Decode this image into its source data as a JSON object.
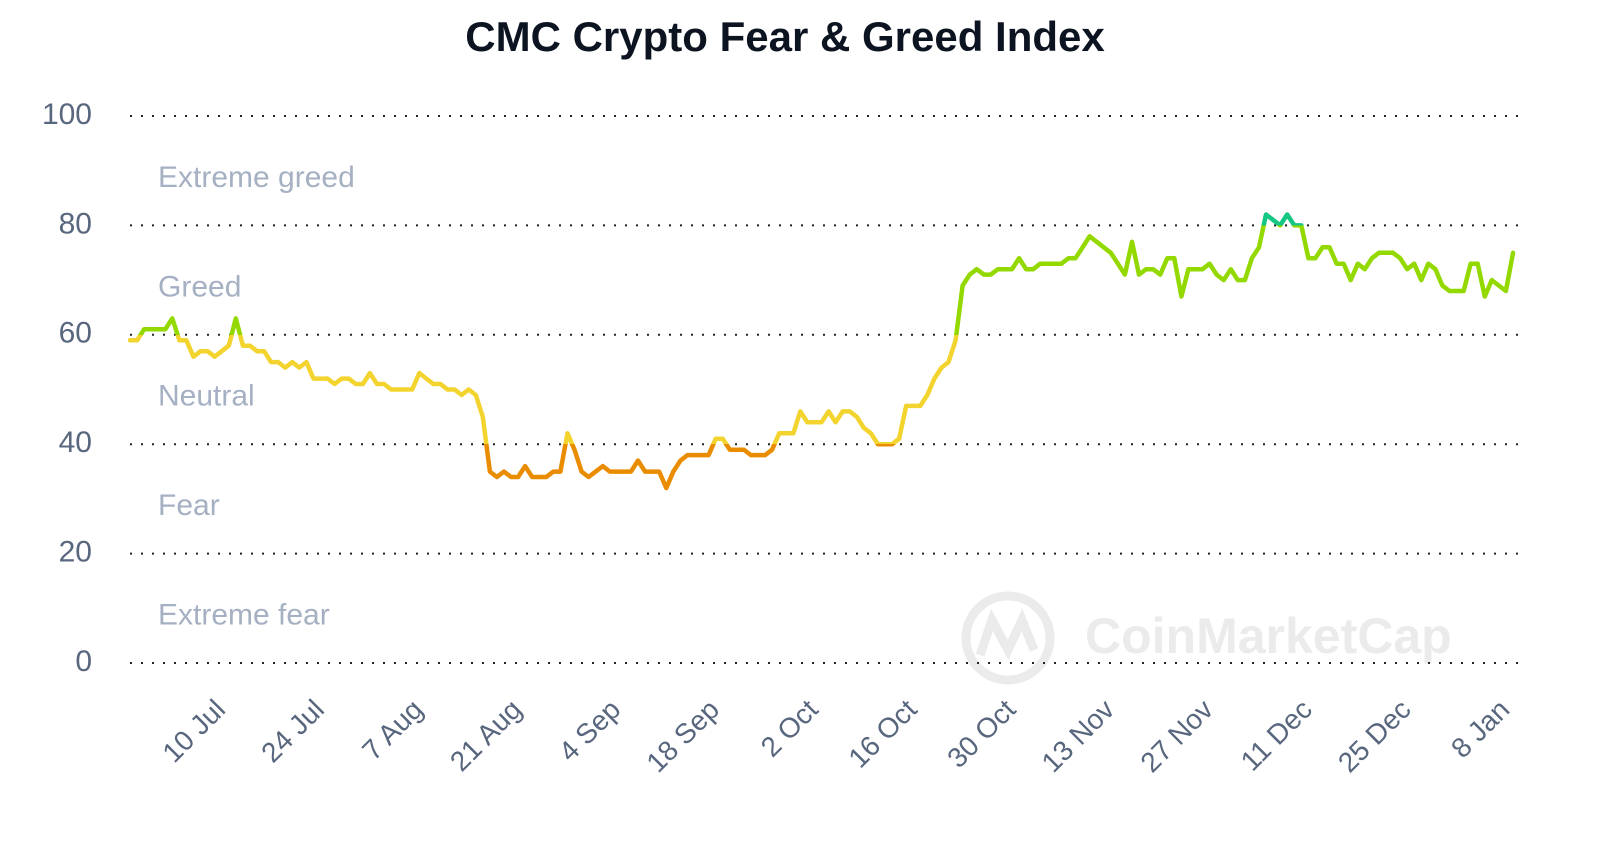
{
  "chart_data": {
    "type": "line",
    "title": "CMC Crypto Fear & Greed Index",
    "watermark": "CoinMarketCap",
    "ylim": [
      0,
      100
    ],
    "yticks": [
      0,
      20,
      40,
      60,
      80,
      100
    ],
    "grid": true,
    "zones": [
      {
        "label": "Extreme fear",
        "from": 0,
        "to": 20,
        "color": "#ea3943"
      },
      {
        "label": "Fear",
        "from": 20,
        "to": 40,
        "color": "#ea8c00"
      },
      {
        "label": "Neutral",
        "from": 40,
        "to": 60,
        "color": "#f3d42f"
      },
      {
        "label": "Greed",
        "from": 60,
        "to": 80,
        "color": "#93d900"
      },
      {
        "label": "Extreme greed",
        "from": 80,
        "to": 100,
        "color": "#16c784"
      }
    ],
    "categories": [
      null,
      null,
      null,
      null,
      null,
      null,
      null,
      null,
      null,
      null,
      null,
      null,
      null,
      "10 Jul",
      null,
      null,
      null,
      null,
      null,
      null,
      null,
      null,
      null,
      null,
      null,
      null,
      null,
      "24 Jul",
      null,
      null,
      null,
      null,
      null,
      null,
      null,
      null,
      null,
      null,
      null,
      null,
      null,
      "7 Aug",
      null,
      null,
      null,
      null,
      null,
      null,
      null,
      null,
      null,
      null,
      null,
      null,
      null,
      "21 Aug",
      null,
      null,
      null,
      null,
      null,
      null,
      null,
      null,
      null,
      null,
      null,
      null,
      null,
      "4 Sep",
      null,
      null,
      null,
      null,
      null,
      null,
      null,
      null,
      null,
      null,
      null,
      null,
      null,
      "18 Sep",
      null,
      null,
      null,
      null,
      null,
      null,
      null,
      null,
      null,
      null,
      null,
      null,
      null,
      "2 Oct",
      null,
      null,
      null,
      null,
      null,
      null,
      null,
      null,
      null,
      null,
      null,
      null,
      null,
      "16 Oct",
      null,
      null,
      null,
      null,
      null,
      null,
      null,
      null,
      null,
      null,
      null,
      null,
      null,
      "30 Oct",
      null,
      null,
      null,
      null,
      null,
      null,
      null,
      null,
      null,
      null,
      null,
      null,
      null,
      "13 Nov",
      null,
      null,
      null,
      null,
      null,
      null,
      null,
      null,
      null,
      null,
      null,
      null,
      null,
      "27 Nov",
      null,
      null,
      null,
      null,
      null,
      null,
      null,
      null,
      null,
      null,
      null,
      null,
      null,
      "11 Dec",
      null,
      null,
      null,
      null,
      null,
      null,
      null,
      null,
      null,
      null,
      null,
      null,
      null,
      "25 Dec",
      null,
      null,
      null,
      null,
      null,
      null,
      null,
      null,
      null,
      null,
      null,
      null,
      null,
      "8 Jan",
      null
    ],
    "values": [
      59,
      59,
      61,
      61,
      61,
      61,
      63,
      59,
      59,
      56,
      57,
      57,
      56,
      57,
      58,
      63,
      58,
      58,
      57,
      57,
      55,
      55,
      54,
      55,
      54,
      55,
      52,
      52,
      52,
      51,
      52,
      52,
      51,
      51,
      53,
      51,
      51,
      50,
      50,
      50,
      50,
      53,
      52,
      51,
      51,
      50,
      50,
      49,
      50,
      49,
      45,
      35,
      34,
      35,
      34,
      34,
      36,
      34,
      34,
      34,
      35,
      35,
      42,
      39,
      35,
      34,
      35,
      36,
      35,
      35,
      35,
      35,
      37,
      35,
      35,
      35,
      32,
      35,
      37,
      38,
      38,
      38,
      38,
      41,
      41,
      39,
      39,
      39,
      38,
      38,
      38,
      39,
      42,
      42,
      42,
      46,
      44,
      44,
      44,
      46,
      44,
      46,
      46,
      45,
      43,
      42,
      40,
      40,
      40,
      41,
      47,
      47,
      47,
      49,
      52,
      54,
      55,
      59,
      69,
      71,
      72,
      71,
      71,
      72,
      72,
      72,
      74,
      72,
      72,
      73,
      73,
      73,
      73,
      74,
      74,
      76,
      78,
      77,
      76,
      75,
      73,
      71,
      77,
      71,
      72,
      72,
      71,
      74,
      74,
      67,
      72,
      72,
      72,
      73,
      71,
      70,
      72,
      70,
      70,
      74,
      76,
      82,
      81,
      80,
      82,
      80,
      80,
      74,
      74,
      76,
      76,
      73,
      73,
      70,
      73,
      72,
      74,
      75,
      75,
      75,
      74,
      72,
      73,
      70,
      73,
      72,
      69,
      68,
      68,
      68,
      73,
      73,
      67,
      70,
      69,
      68,
      75
    ]
  }
}
